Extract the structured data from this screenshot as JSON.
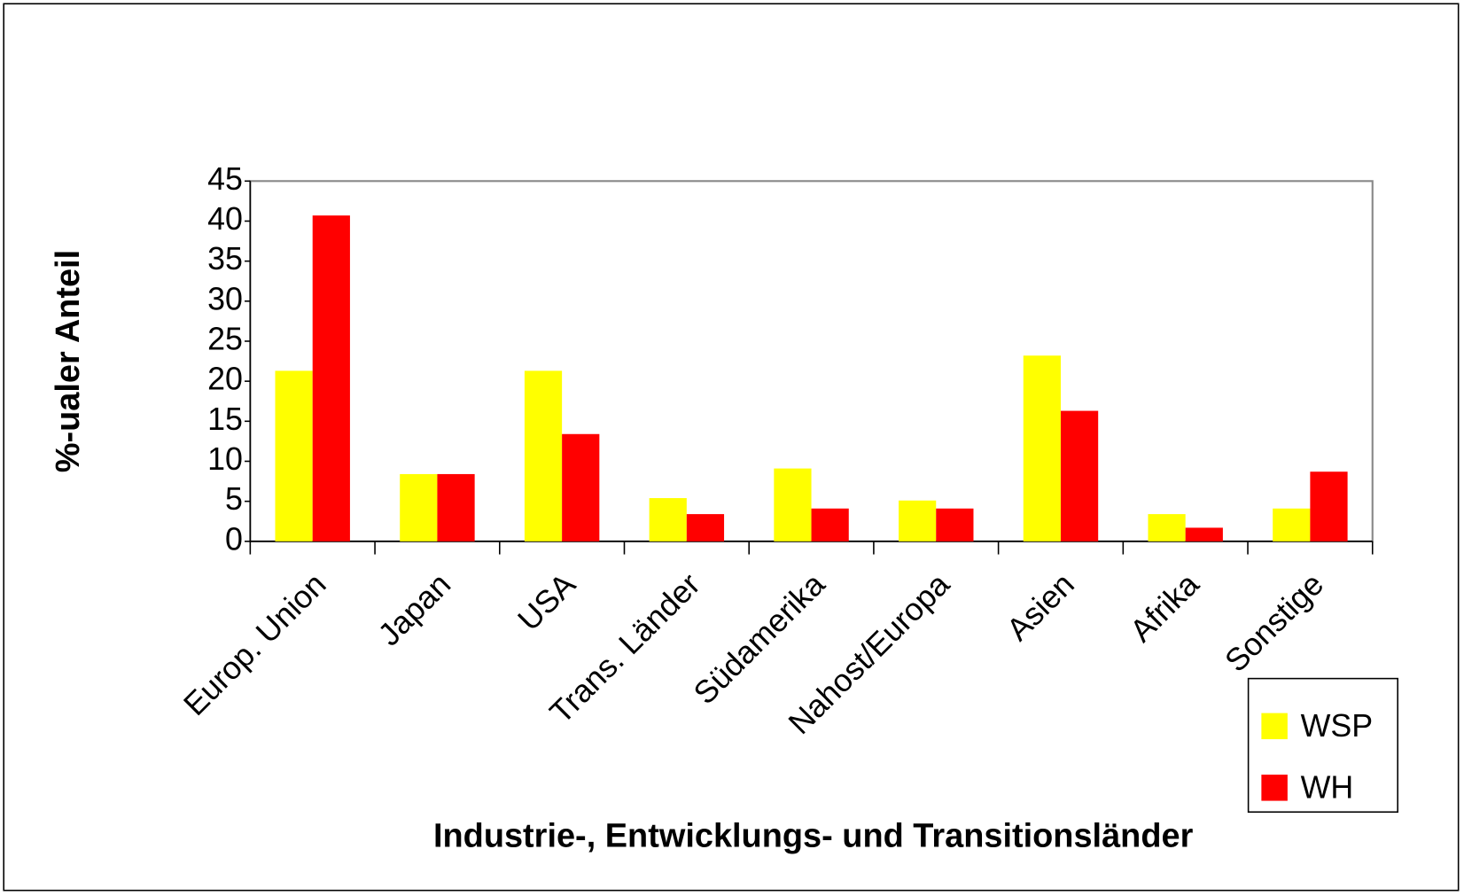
{
  "chart_data": {
    "type": "bar",
    "x_label": "Industrie-, Entwicklungs- und Transitionsländer",
    "y_label": "%-ualer Anteil",
    "categories": [
      "Europ. Union",
      "Japan",
      "USA",
      "Trans. Länder",
      "Südamerika",
      "Nahost/Europa",
      "Asien",
      "Afrika",
      "Sonstige"
    ],
    "series": [
      {
        "name": "WSP",
        "color": "#ffff00",
        "values": [
          21.3,
          8.4,
          21.3,
          5.4,
          9.1,
          5.1,
          23.2,
          3.4,
          4.1
        ]
      },
      {
        "name": "WH",
        "color": "#ff0000",
        "values": [
          40.7,
          8.4,
          13.4,
          3.4,
          4.1,
          4.1,
          16.3,
          1.7,
          8.7
        ]
      }
    ],
    "ylim": [
      0,
      45
    ],
    "yticks": [
      0,
      5,
      10,
      15,
      20,
      25,
      30,
      35,
      40,
      45
    ],
    "grid": false,
    "legend": "bottom-right"
  }
}
